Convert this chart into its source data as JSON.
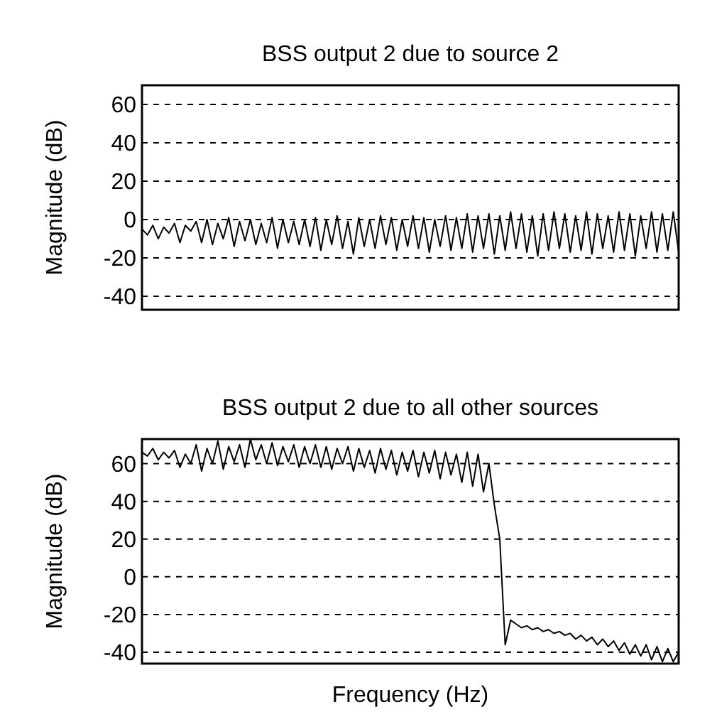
{
  "chart_data": [
    {
      "type": "line",
      "title": "BSS output 2 due to source 2",
      "ylabel": "Magnitude (dB)",
      "categories": [
        null,
        null,
        null,
        null,
        null,
        null,
        null,
        null,
        null,
        null,
        null,
        null,
        null,
        null,
        null,
        null,
        null,
        null,
        null,
        null,
        null,
        null,
        null,
        null,
        null,
        null,
        null,
        null,
        null,
        null,
        null,
        null,
        null,
        null,
        null,
        null,
        null,
        null,
        null,
        null,
        null,
        null,
        null,
        null,
        null,
        null,
        null,
        null,
        null,
        null,
        null,
        null,
        null,
        null,
        null,
        null,
        null,
        null,
        null,
        null,
        null,
        null,
        null,
        null,
        null,
        null,
        null,
        null,
        null,
        null,
        null,
        null,
        null,
        null,
        null,
        null,
        null,
        null,
        null,
        null,
        null,
        null,
        null,
        null,
        null,
        null,
        null,
        null,
        null,
        null,
        null,
        null,
        null,
        null,
        null,
        null,
        null,
        null,
        null,
        null
      ],
      "series": [
        {
          "color": "#000000",
          "values": [
            -5,
            -8,
            -3,
            -10,
            -4,
            -7,
            -2,
            -12,
            -3,
            -6,
            -1,
            -12,
            0,
            -13,
            -2,
            -10,
            1,
            -14,
            -1,
            -11,
            0,
            -13,
            -2,
            -12,
            1,
            -15,
            0,
            -12,
            -1,
            -13,
            0,
            -14,
            1,
            -16,
            0,
            -13,
            2,
            -15,
            -1,
            -18,
            1,
            -14,
            0,
            -15,
            2,
            -13,
            1,
            -16,
            0,
            -14,
            2,
            -15,
            1,
            -17,
            0,
            -14,
            2,
            -16,
            1,
            -15,
            3,
            -17,
            2,
            -15,
            3,
            -18,
            2,
            -16,
            4,
            -15,
            3,
            -17,
            2,
            -19,
            3,
            -16,
            4,
            -15,
            3,
            -17,
            2,
            -16,
            4,
            -18,
            3,
            -15,
            2,
            -17,
            4,
            -16,
            3,
            -19,
            2,
            -15,
            4,
            -17,
            3,
            -16,
            4,
            -17
          ]
        }
      ],
      "ylim": [
        -47,
        70
      ],
      "yticks": [
        -40,
        -20,
        0,
        20,
        40,
        60
      ],
      "grid": "y",
      "tick_labels": "y"
    },
    {
      "type": "line",
      "title": "BSS output 2 due to all other sources",
      "xlabel": "Frequency (Hz)",
      "ylabel": "Magnitude (dB)",
      "categories": [
        null,
        null,
        null,
        null,
        null,
        null,
        null,
        null,
        null,
        null,
        null,
        null,
        null,
        null,
        null,
        null,
        null,
        null,
        null,
        null,
        null,
        null,
        null,
        null,
        null,
        null,
        null,
        null,
        null,
        null,
        null,
        null,
        null,
        null,
        null,
        null,
        null,
        null,
        null,
        null,
        null,
        null,
        null,
        null,
        null,
        null,
        null,
        null,
        null,
        null,
        null,
        null,
        null,
        null,
        null,
        null,
        null,
        null,
        null,
        null,
        null,
        null,
        null,
        null,
        null,
        null,
        null,
        null,
        null,
        null,
        null,
        null,
        null,
        null,
        null,
        null,
        null,
        null,
        null,
        null,
        null,
        null,
        null,
        null,
        null,
        null,
        null,
        null,
        null,
        null,
        null,
        null,
        null,
        null,
        null,
        null,
        null,
        null,
        null,
        null
      ],
      "series": [
        {
          "color": "#000000",
          "values": [
            66,
            64,
            68,
            62,
            66,
            63,
            67,
            58,
            65,
            60,
            70,
            56,
            68,
            60,
            72,
            57,
            69,
            61,
            70,
            58,
            73,
            62,
            70,
            60,
            71,
            59,
            69,
            61,
            70,
            58,
            69,
            60,
            70,
            58,
            69,
            57,
            68,
            60,
            69,
            56,
            68,
            58,
            67,
            55,
            68,
            57,
            67,
            54,
            66,
            56,
            67,
            53,
            66,
            55,
            67,
            52,
            66,
            54,
            65,
            50,
            66,
            48,
            65,
            45,
            60,
            38,
            20,
            -36,
            -23,
            -25,
            -27,
            -26,
            -28,
            -27,
            -29,
            -28,
            -30,
            -29,
            -31,
            -30,
            -33,
            -31,
            -34,
            -32,
            -36,
            -33,
            -37,
            -34,
            -39,
            -35,
            -41,
            -36,
            -42,
            -36,
            -44,
            -37,
            -45,
            -38,
            -45,
            -40
          ]
        }
      ],
      "ylim": [
        -46,
        73
      ],
      "yticks": [
        -40,
        -20,
        0,
        20,
        40,
        60
      ],
      "grid": "y",
      "tick_labels": "y"
    }
  ]
}
